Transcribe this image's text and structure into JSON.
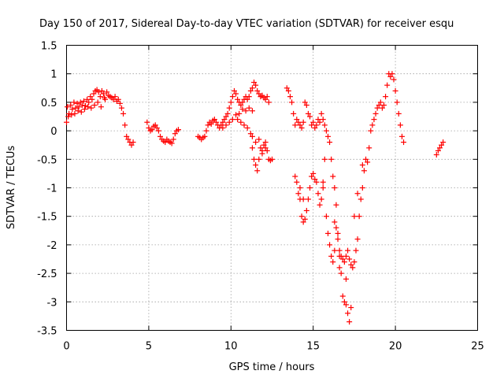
{
  "chart_data": {
    "type": "scatter",
    "title": "Day 150 of 2017, Sidereal Day-to-day VTEC variation (SDTVAR) for receiver esqu",
    "xlabel": "GPS time / hours",
    "ylabel": "SDTVAR / TECUs",
    "xlim": [
      0,
      25
    ],
    "ylim": [
      -3.5,
      1.5
    ],
    "x_ticks": [
      "0",
      "5",
      "10",
      "15",
      "20",
      "25"
    ],
    "y_ticks": [
      "1.5",
      "1",
      "0.5",
      "0",
      "-0.5",
      "-1",
      "-1.5",
      "-2",
      "-2.5",
      "-3",
      "-3.5"
    ],
    "x_tick_values": [
      0,
      5,
      10,
      15,
      20,
      25
    ],
    "y_tick_values": [
      1.5,
      1,
      0.5,
      0,
      -0.5,
      -1,
      -1.5,
      -2,
      -2.5,
      -3,
      -3.5
    ],
    "grid": true,
    "marker": "+",
    "color": "#ff0000",
    "series": [
      {
        "name": "SDTVAR",
        "points": [
          [
            0.0,
            0.15
          ],
          [
            0.05,
            0.42
          ],
          [
            0.15,
            0.3
          ],
          [
            0.25,
            0.45
          ],
          [
            0.35,
            0.38
          ],
          [
            0.45,
            0.5
          ],
          [
            0.55,
            0.4
          ],
          [
            0.65,
            0.48
          ],
          [
            0.75,
            0.42
          ],
          [
            0.85,
            0.5
          ],
          [
            0.95,
            0.45
          ],
          [
            1.05,
            0.52
          ],
          [
            1.15,
            0.44
          ],
          [
            1.25,
            0.55
          ],
          [
            1.35,
            0.5
          ],
          [
            1.45,
            0.6
          ],
          [
            1.55,
            0.55
          ],
          [
            1.65,
            0.65
          ],
          [
            1.75,
            0.7
          ],
          [
            1.85,
            0.72
          ],
          [
            1.95,
            0.68
          ],
          [
            2.05,
            0.6
          ],
          [
            2.15,
            0.7
          ],
          [
            2.25,
            0.65
          ],
          [
            2.35,
            0.55
          ],
          [
            2.45,
            0.68
          ],
          [
            2.55,
            0.62
          ],
          [
            2.65,
            0.6
          ],
          [
            2.75,
            0.58
          ],
          [
            2.85,
            0.55
          ],
          [
            2.95,
            0.6
          ],
          [
            3.05,
            0.52
          ],
          [
            3.15,
            0.55
          ],
          [
            3.25,
            0.48
          ],
          [
            3.35,
            0.4
          ],
          [
            3.45,
            0.3
          ],
          [
            3.55,
            0.1
          ],
          [
            3.65,
            -0.1
          ],
          [
            3.75,
            -0.15
          ],
          [
            3.85,
            -0.2
          ],
          [
            3.95,
            -0.25
          ],
          [
            4.05,
            -0.2
          ],
          [
            0.1,
            0.25
          ],
          [
            0.3,
            0.28
          ],
          [
            0.5,
            0.3
          ],
          [
            0.7,
            0.35
          ],
          [
            0.9,
            0.33
          ],
          [
            1.1,
            0.38
          ],
          [
            1.3,
            0.42
          ],
          [
            1.5,
            0.4
          ],
          [
            1.7,
            0.45
          ],
          [
            1.9,
            0.5
          ],
          [
            2.1,
            0.42
          ],
          [
            2.3,
            0.58
          ],
          [
            4.9,
            0.15
          ],
          [
            5.0,
            0.05
          ],
          [
            5.1,
            0.0
          ],
          [
            5.2,
            0.02
          ],
          [
            5.3,
            0.08
          ],
          [
            5.4,
            0.1
          ],
          [
            5.5,
            0.05
          ],
          [
            5.6,
            0.0
          ],
          [
            5.7,
            -0.1
          ],
          [
            5.8,
            -0.15
          ],
          [
            5.9,
            -0.18
          ],
          [
            6.0,
            -0.2
          ],
          [
            6.1,
            -0.15
          ],
          [
            6.2,
            -0.18
          ],
          [
            6.3,
            -0.2
          ],
          [
            6.4,
            -0.22
          ],
          [
            6.5,
            -0.15
          ],
          [
            6.6,
            -0.05
          ],
          [
            6.7,
            0.0
          ],
          [
            6.8,
            0.02
          ],
          [
            8.0,
            -0.1
          ],
          [
            8.1,
            -0.12
          ],
          [
            8.2,
            -0.15
          ],
          [
            8.3,
            -0.12
          ],
          [
            8.4,
            -0.1
          ],
          [
            8.5,
            0.0
          ],
          [
            8.6,
            0.1
          ],
          [
            8.7,
            0.15
          ],
          [
            8.8,
            0.12
          ],
          [
            8.9,
            0.18
          ],
          [
            9.0,
            0.2
          ],
          [
            9.1,
            0.15
          ],
          [
            9.2,
            0.1
          ],
          [
            9.3,
            0.05
          ],
          [
            9.4,
            0.1
          ],
          [
            9.5,
            0.15
          ],
          [
            9.6,
            0.2
          ],
          [
            9.7,
            0.25
          ],
          [
            9.8,
            0.3
          ],
          [
            9.9,
            0.4
          ],
          [
            10.0,
            0.5
          ],
          [
            10.1,
            0.6
          ],
          [
            10.2,
            0.7
          ],
          [
            10.3,
            0.65
          ],
          [
            10.4,
            0.55
          ],
          [
            10.5,
            0.5
          ],
          [
            10.6,
            0.45
          ],
          [
            10.7,
            0.5
          ],
          [
            10.8,
            0.55
          ],
          [
            10.9,
            0.6
          ],
          [
            11.0,
            0.55
          ],
          [
            11.1,
            0.6
          ],
          [
            11.2,
            0.7
          ],
          [
            11.3,
            0.75
          ],
          [
            11.4,
            0.85
          ],
          [
            11.5,
            0.8
          ],
          [
            11.6,
            0.7
          ],
          [
            11.7,
            0.65
          ],
          [
            11.8,
            0.6
          ],
          [
            11.9,
            0.62
          ],
          [
            12.0,
            0.58
          ],
          [
            12.1,
            0.55
          ],
          [
            12.2,
            0.6
          ],
          [
            12.3,
            0.5
          ],
          [
            9.5,
            0.05
          ],
          [
            9.7,
            0.1
          ],
          [
            9.9,
            0.15
          ],
          [
            10.1,
            0.2
          ],
          [
            10.3,
            0.28
          ],
          [
            10.5,
            0.3
          ],
          [
            10.7,
            0.38
          ],
          [
            10.9,
            0.35
          ],
          [
            11.1,
            0.4
          ],
          [
            11.3,
            0.35
          ],
          [
            10.4,
            0.2
          ],
          [
            10.6,
            0.15
          ],
          [
            10.8,
            0.1
          ],
          [
            11.0,
            0.05
          ],
          [
            11.2,
            -0.05
          ],
          [
            11.3,
            -0.3
          ],
          [
            11.4,
            -0.5
          ],
          [
            11.5,
            -0.6
          ],
          [
            11.6,
            -0.7
          ],
          [
            11.7,
            -0.5
          ],
          [
            11.8,
            -0.3
          ],
          [
            11.9,
            -0.35
          ],
          [
            12.0,
            -0.25
          ],
          [
            12.1,
            -0.3
          ],
          [
            12.2,
            -0.35
          ],
          [
            12.3,
            -0.5
          ],
          [
            12.4,
            -0.52
          ],
          [
            12.5,
            -0.5
          ],
          [
            11.3,
            -0.1
          ],
          [
            11.5,
            -0.2
          ],
          [
            11.7,
            -0.15
          ],
          [
            11.9,
            -0.4
          ],
          [
            12.1,
            -0.2
          ],
          [
            13.4,
            0.75
          ],
          [
            13.5,
            0.7
          ],
          [
            13.6,
            0.6
          ],
          [
            13.7,
            0.5
          ],
          [
            13.8,
            0.3
          ],
          [
            13.9,
            0.1
          ],
          [
            14.0,
            0.2
          ],
          [
            14.1,
            0.15
          ],
          [
            14.2,
            0.1
          ],
          [
            14.3,
            0.05
          ],
          [
            14.4,
            0.15
          ],
          [
            14.5,
            0.5
          ],
          [
            14.6,
            0.45
          ],
          [
            14.7,
            0.3
          ],
          [
            14.8,
            0.25
          ],
          [
            14.9,
            0.1
          ],
          [
            15.0,
            0.15
          ],
          [
            15.1,
            0.05
          ],
          [
            15.2,
            0.1
          ],
          [
            15.3,
            0.2
          ],
          [
            15.4,
            0.15
          ],
          [
            15.5,
            0.3
          ],
          [
            15.6,
            0.2
          ],
          [
            15.7,
            0.1
          ],
          [
            15.8,
            0.0
          ],
          [
            15.9,
            -0.1
          ],
          [
            16.0,
            -0.2
          ],
          [
            16.1,
            -0.5
          ],
          [
            16.2,
            -0.8
          ],
          [
            16.3,
            -1.0
          ],
          [
            16.4,
            -1.3
          ],
          [
            16.5,
            -1.8
          ],
          [
            16.6,
            -2.2
          ],
          [
            16.7,
            -2.5
          ],
          [
            16.8,
            -2.9
          ],
          [
            16.9,
            -3.0
          ],
          [
            17.0,
            -3.05
          ],
          [
            17.1,
            -3.2
          ],
          [
            17.2,
            -3.35
          ],
          [
            17.3,
            -3.1
          ],
          [
            13.9,
            -0.8
          ],
          [
            14.0,
            -0.9
          ],
          [
            14.1,
            -1.1
          ],
          [
            14.2,
            -1.2
          ],
          [
            14.3,
            -1.5
          ],
          [
            14.4,
            -1.6
          ],
          [
            14.5,
            -1.55
          ],
          [
            14.6,
            -1.4
          ],
          [
            14.7,
            -1.2
          ],
          [
            14.8,
            -1.0
          ],
          [
            14.9,
            -0.8
          ],
          [
            15.0,
            -0.75
          ],
          [
            15.1,
            -0.85
          ],
          [
            15.2,
            -0.9
          ],
          [
            15.3,
            -1.1
          ],
          [
            15.4,
            -1.3
          ],
          [
            15.5,
            -1.2
          ],
          [
            15.6,
            -0.9
          ],
          [
            15.7,
            -0.5
          ],
          [
            15.8,
            -1.5
          ],
          [
            15.9,
            -1.8
          ],
          [
            16.0,
            -2.0
          ],
          [
            16.1,
            -2.2
          ],
          [
            16.2,
            -2.3
          ],
          [
            16.3,
            -2.1
          ],
          [
            16.4,
            -1.7
          ],
          [
            16.5,
            -1.9
          ],
          [
            16.6,
            -2.1
          ],
          [
            16.7,
            -2.2
          ],
          [
            16.8,
            -2.25
          ],
          [
            16.9,
            -2.3
          ],
          [
            17.0,
            -2.2
          ],
          [
            17.1,
            -2.1
          ],
          [
            17.2,
            -2.25
          ],
          [
            17.3,
            -2.35
          ],
          [
            17.4,
            -2.4
          ],
          [
            17.5,
            -2.3
          ],
          [
            17.6,
            -2.1
          ],
          [
            17.7,
            -1.9
          ],
          [
            17.8,
            -1.5
          ],
          [
            17.9,
            -1.2
          ],
          [
            18.0,
            -1.0
          ],
          [
            18.1,
            -0.7
          ],
          [
            18.2,
            -0.5
          ],
          [
            18.3,
            -0.55
          ],
          [
            18.4,
            -0.3
          ],
          [
            18.5,
            0.0
          ],
          [
            18.6,
            0.1
          ],
          [
            18.7,
            0.2
          ],
          [
            18.8,
            0.3
          ],
          [
            18.9,
            0.4
          ],
          [
            19.0,
            0.45
          ],
          [
            19.1,
            0.5
          ],
          [
            19.2,
            0.4
          ],
          [
            19.3,
            0.45
          ],
          [
            19.4,
            0.6
          ],
          [
            19.5,
            0.8
          ],
          [
            19.6,
            1.0
          ],
          [
            19.7,
            0.95
          ],
          [
            19.8,
            1.0
          ],
          [
            19.9,
            0.9
          ],
          [
            20.0,
            0.7
          ],
          [
            20.1,
            0.5
          ],
          [
            20.2,
            0.3
          ],
          [
            20.3,
            0.1
          ],
          [
            20.4,
            -0.1
          ],
          [
            20.5,
            -0.2
          ],
          [
            14.2,
            -1.0
          ],
          [
            14.4,
            -1.2
          ],
          [
            15.6,
            -1.0
          ],
          [
            16.3,
            -1.6
          ],
          [
            16.6,
            -2.4
          ],
          [
            17.0,
            -2.6
          ],
          [
            17.5,
            -1.5
          ],
          [
            17.7,
            -1.1
          ],
          [
            18.0,
            -0.6
          ],
          [
            22.5,
            -0.42
          ],
          [
            22.6,
            -0.35
          ],
          [
            22.7,
            -0.3
          ],
          [
            22.8,
            -0.25
          ],
          [
            22.9,
            -0.2
          ]
        ]
      }
    ]
  }
}
